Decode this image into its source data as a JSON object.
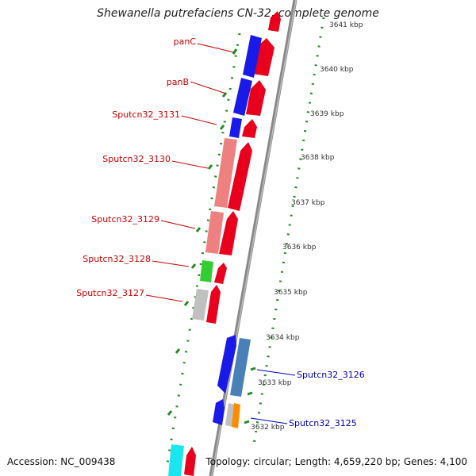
{
  "title": "Shewanella putrefaciens CN-32, complete genome",
  "footer": {
    "accession": "Accession: NC_009438",
    "topology": "Topology: circular; Length: 4,659,220 bp; Genes: 4,100"
  },
  "ticks": [
    "3641 kbp",
    "3640 kbp",
    "3639 kbp",
    "3638 kbp",
    "3637 kbp",
    "3636 kbp",
    "3635 kbp",
    "3634 kbp",
    "3633 kbp",
    "3632 kbp"
  ],
  "gene_labels_left": [
    "panC",
    "panB",
    "Sputcn32_3131",
    "Sputcn32_3130",
    "Sputcn32_3129",
    "Sputcn32_3128",
    "Sputcn32_3127"
  ],
  "gene_labels_right": [
    "Sputcn32_3126",
    "Sputcn32_3125"
  ],
  "colors": {
    "backbone": "#888888",
    "cds": "#e8001c",
    "blue": "#1a1ae8",
    "pink": "#ef8080",
    "green": "#33cc33",
    "gray": "#c0c0c0",
    "steel": "#4a80b8",
    "orange": "#ff8c00",
    "cyan": "#19e6f0",
    "dotted_ring": "#228b22",
    "label_red": "#cc0000",
    "label_blue": "#0000bb"
  }
}
